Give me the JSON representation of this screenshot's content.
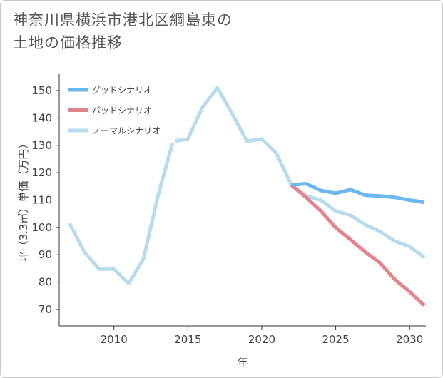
{
  "page": {
    "title_line1": "神奈川県横浜市港北区綱島東の",
    "title_line2": "土地の価格推移"
  },
  "chart_data": {
    "type": "line",
    "title": "神奈川県横浜市港北区綱島東の土地の価格推移",
    "xlabel": "年",
    "ylabel": "坪（3.3㎡）単価（万円）",
    "xlim": [
      2006.3,
      2031.1
    ],
    "ylim": [
      64,
      156
    ],
    "xticks": [
      2010,
      2015,
      2020,
      2025,
      2030
    ],
    "yticks": [
      70,
      80,
      90,
      100,
      110,
      120,
      130,
      140,
      150
    ],
    "grid": false,
    "legend_position": "top-left",
    "series": [
      {
        "name": "グッドシナリオ",
        "color": "#6cb8ec",
        "x": [
          2022,
          2023,
          2024,
          2025,
          2026,
          2027,
          2028,
          2029,
          2030,
          2031
        ],
        "values": [
          115.5,
          116,
          113.5,
          112.5,
          113.8,
          111.8,
          111.5,
          111,
          110,
          109.2
        ]
      },
      {
        "name": "バッドシナリオ",
        "color": "#e0868c",
        "x": [
          2022,
          2023,
          2024,
          2025,
          2026,
          2027,
          2028,
          2029,
          2030,
          2031
        ],
        "values": [
          115.5,
          111,
          106,
          100,
          95.5,
          91,
          87,
          81,
          76.5,
          71.5
        ]
      },
      {
        "name": "ノーマルシナリオ",
        "color": "#b8dcec",
        "x": [
          2007,
          2008,
          2009,
          2010,
          2011,
          2012,
          2013,
          2014,
          2015,
          2016,
          2017,
          2018,
          2019,
          2020,
          2021,
          2022,
          2023,
          2024,
          2025,
          2026,
          2027,
          2028,
          2029,
          2030,
          2031
        ],
        "values": [
          101.5,
          91,
          84.8,
          84.8,
          79.5,
          88.5,
          112,
          131.5,
          132.3,
          144,
          151,
          141.5,
          131.5,
          132.3,
          127,
          115.5,
          111.5,
          110,
          106,
          104.5,
          101,
          98.5,
          95,
          93,
          89
        ]
      }
    ]
  }
}
